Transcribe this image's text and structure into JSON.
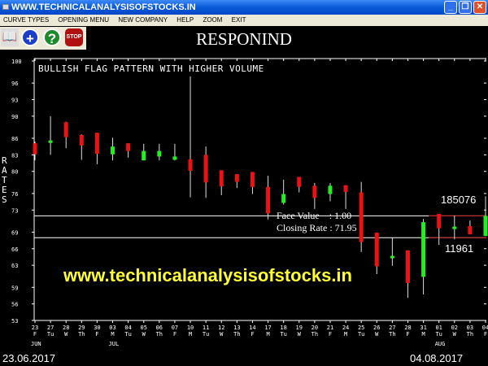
{
  "window": {
    "title": "WWW.TECHNICALANALYSISOFSTOCKS.IN"
  },
  "menu": [
    "CURVE TYPES",
    "OPENING MENU",
    "NEW COMPANY",
    "HELP",
    "ZOOM",
    "EXIT"
  ],
  "toolbar": {
    "icons": [
      "book-icon",
      "plus-icon",
      "help-icon",
      "stop-icon"
    ],
    "stop_label": "STOP",
    "help_label": "?",
    "plus_label": "+"
  },
  "stock": "RESPONIND",
  "pattern": "BULLISH FLAG PATTERN WITH HIGHER VOLUME",
  "yaxis_label": "RATES",
  "info": {
    "face_value": "Face Value    : 1.00",
    "closing_rate": "Closing Rate : 71.95"
  },
  "volume": {
    "high": "185076",
    "low": "11961"
  },
  "watermark": "www.technicalanalysisofstocks.in",
  "start_date": "23.06.2017",
  "end_date": "04.08.2017",
  "colors": {
    "up": "#22ee22",
    "down": "#ee1111",
    "background": "#000000"
  },
  "chart_data": {
    "type": "candlestick",
    "yticks": [
      100,
      96,
      93,
      90,
      86,
      83,
      80,
      76,
      73,
      69,
      66,
      63,
      59,
      56,
      53
    ],
    "ylim": [
      53,
      100
    ],
    "months": [
      {
        "label": "JUN",
        "at": 0
      },
      {
        "label": "JUL",
        "at": 5
      },
      {
        "label": "AUG",
        "at": 26
      }
    ],
    "reference_lines": [
      71.95,
      68.0
    ],
    "days": [
      "23",
      "27",
      "28",
      "29",
      "30",
      "03",
      "04",
      "05",
      "06",
      "07",
      "10",
      "11",
      "12",
      "13",
      "14",
      "17",
      "18",
      "19",
      "20",
      "21",
      "24",
      "25",
      "26",
      "27",
      "28",
      "31",
      "01",
      "02",
      "03",
      "04"
    ],
    "weekdays": [
      "F",
      "Tu",
      "W",
      "Th",
      "F",
      "M",
      "Tu",
      "W",
      "Th",
      "F",
      "M",
      "Tu",
      "W",
      "Th",
      "F",
      "M",
      "Tu",
      "W",
      "Th",
      "F",
      "M",
      "Tu",
      "W",
      "Th",
      "F",
      "M",
      "Tu",
      "W",
      "Th",
      "F"
    ],
    "ohlc": [
      [
        85.1,
        85.4,
        82.0,
        83.1
      ],
      [
        85.4,
        90.0,
        83.0,
        85.6
      ],
      [
        88.9,
        89.0,
        84.2,
        86.2
      ],
      [
        86.6,
        86.7,
        82.1,
        84.7
      ],
      [
        87.0,
        87.0,
        81.3,
        83.2
      ],
      [
        83.1,
        86.1,
        82.0,
        84.5
      ],
      [
        85.1,
        85.1,
        82.5,
        83.7
      ],
      [
        82.0,
        85.0,
        82.0,
        83.7
      ],
      [
        82.7,
        85.0,
        82.0,
        83.7
      ],
      [
        82.1,
        85.0,
        82.0,
        82.7
      ],
      [
        82.2,
        97.2,
        75.3,
        80.1
      ],
      [
        83.0,
        84.5,
        75.2,
        78.0
      ],
      [
        80.2,
        80.2,
        75.7,
        77.3
      ],
      [
        79.5,
        79.5,
        77.0,
        78.1
      ],
      [
        79.9,
        79.9,
        75.9,
        77.2
      ],
      [
        77.2,
        79.2,
        71.3,
        72.4
      ],
      [
        74.3,
        78.5,
        74.0,
        75.9
      ],
      [
        79.0,
        79.0,
        76.2,
        77.2
      ],
      [
        77.4,
        77.9,
        73.2,
        75.2
      ],
      [
        75.9,
        77.9,
        74.6,
        77.4
      ],
      [
        77.5,
        77.5,
        73.2,
        76.3
      ],
      [
        76.2,
        78.1,
        65.4,
        67.2
      ],
      [
        68.9,
        68.9,
        61.4,
        62.8
      ],
      [
        64.3,
        68.0,
        62.9,
        64.7
      ],
      [
        65.7,
        65.7,
        57.1,
        59.8
      ],
      [
        60.9,
        71.4,
        57.7,
        70.8
      ],
      [
        72.3,
        72.3,
        66.7,
        69.7
      ],
      [
        69.8,
        72.0,
        67.7,
        70.0
      ],
      [
        70.1,
        71.1,
        68.6,
        68.6
      ],
      [
        68.3,
        75.5,
        68.3,
        71.95
      ]
    ]
  }
}
